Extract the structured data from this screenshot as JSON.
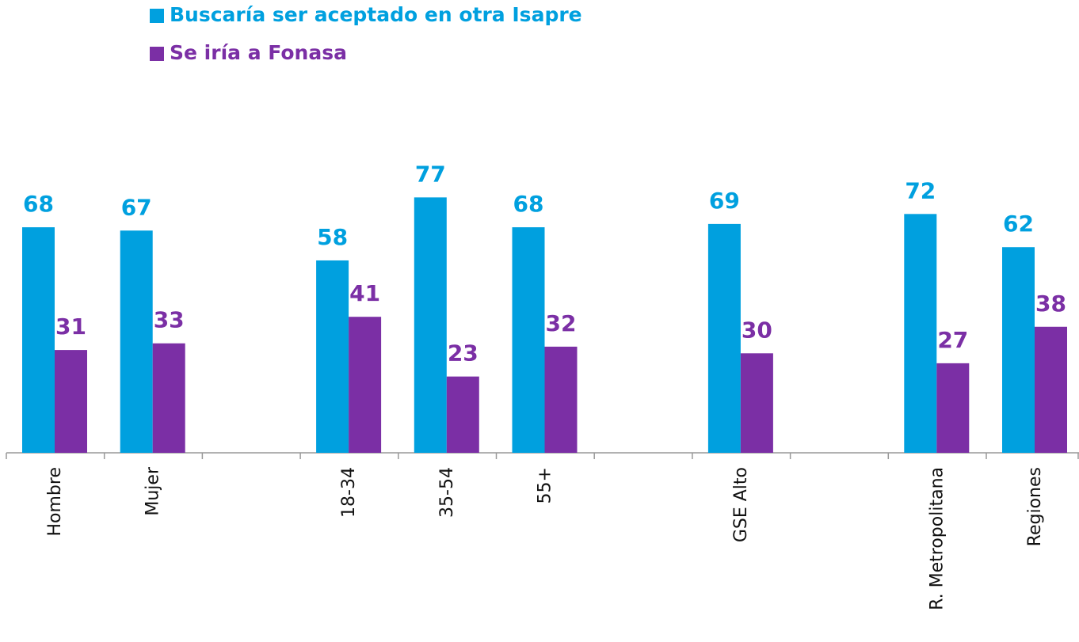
{
  "chart_data": {
    "type": "bar",
    "categories": [
      "Hombre",
      "Mujer",
      null,
      "18-34",
      "35-54",
      "55+",
      null,
      "GSE Alto",
      null,
      "R. Metropolitana",
      "Regiones"
    ],
    "series": [
      {
        "name": "Buscaría ser aceptado en otra Isapre",
        "color": "#00a0df",
        "values": [
          68,
          67,
          null,
          58,
          77,
          68,
          null,
          69,
          null,
          72,
          62
        ]
      },
      {
        "name": "Se iría a Fonasa",
        "color": "#7b2fa5",
        "values": [
          31,
          33,
          null,
          41,
          23,
          32,
          null,
          30,
          null,
          27,
          38
        ]
      }
    ],
    "legend": "top-left"
  }
}
